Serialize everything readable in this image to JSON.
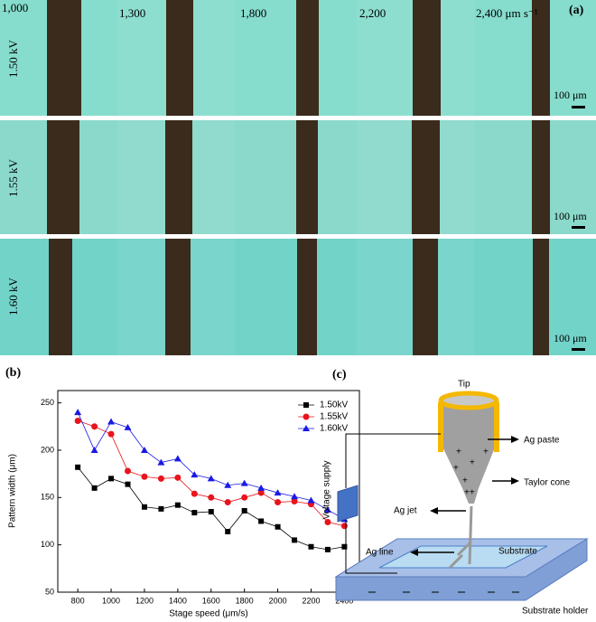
{
  "panel_a": {
    "label": "(a)",
    "speeds": [
      "1,000",
      "1,300",
      "1,800",
      "2,200",
      "2,400 μm s⁻¹"
    ],
    "voltages": [
      "1.50 kV",
      "1.55 kV",
      "1.60 kV"
    ],
    "scale_bar": "100 μm"
  },
  "chart_data": {
    "type": "line",
    "label": "(b)",
    "x_label": "Stage speed (μm/s)",
    "y_label": "Pattern width (μm)",
    "x": [
      800,
      900,
      1000,
      1100,
      1200,
      1300,
      1400,
      1500,
      1600,
      1700,
      1800,
      1900,
      2000,
      2100,
      2200,
      2300,
      2400
    ],
    "series": [
      {
        "name": "1.50kV",
        "color": "#000000",
        "marker": "square",
        "values": [
          182,
          160,
          170,
          164,
          140,
          138,
          142,
          134,
          135,
          114,
          136,
          125,
          119,
          105,
          98,
          95,
          98
        ]
      },
      {
        "name": "1.55kV",
        "color": "#e8141c",
        "marker": "circle",
        "values": [
          231,
          225,
          217,
          178,
          172,
          170,
          171,
          154,
          150,
          145,
          150,
          155,
          145,
          146,
          143,
          124,
          120
        ]
      },
      {
        "name": "1.60kV",
        "color": "#1a1ae6",
        "marker": "triangle",
        "values": [
          240,
          200,
          230,
          224,
          200,
          187,
          191,
          174,
          170,
          163,
          165,
          160,
          155,
          151,
          147,
          137,
          127
        ]
      }
    ],
    "xlim": [
      680,
      2490
    ],
    "ylim": [
      50,
      263
    ],
    "xticks": [
      800,
      1000,
      1200,
      1400,
      1600,
      1800,
      2000,
      2200,
      2400
    ],
    "yticks": [
      50,
      100,
      150,
      200,
      250
    ],
    "legend": "upper right"
  },
  "panel_c": {
    "label": "(c)",
    "tip": "Tip",
    "ag_paste": "Ag paste",
    "taylor_cone": "Taylor cone",
    "voltage_supply": "Voltage supply",
    "ag_jet": "Ag jet",
    "ag_line": "Ag line",
    "substrate": "Substrate",
    "substrate_holder": "Substrate holder"
  }
}
